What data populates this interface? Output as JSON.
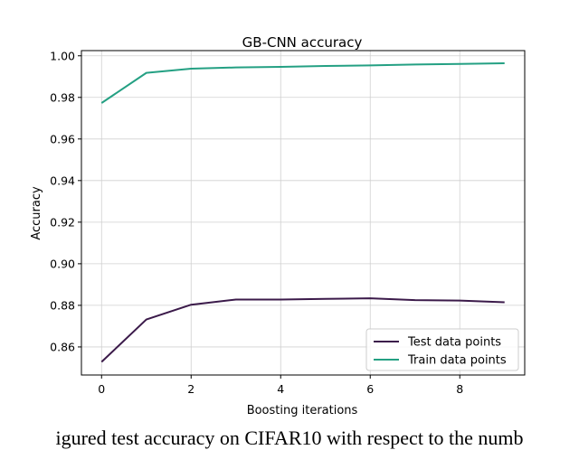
{
  "chart_data": {
    "type": "line",
    "title": "GB-CNN accuracy",
    "xlabel": "Boosting iterations",
    "ylabel": "Accuracy",
    "xlim": [
      -0.45,
      9.45
    ],
    "ylim": [
      0.8465,
      1.0025
    ],
    "xticks": [
      0,
      2,
      4,
      6,
      8
    ],
    "yticks": [
      0.86,
      0.88,
      0.9,
      0.92,
      0.94,
      0.96,
      0.98,
      1.0
    ],
    "ytick_labels": [
      "0.86",
      "0.88",
      "0.90",
      "0.92",
      "0.94",
      "0.96",
      "0.98",
      "1.00"
    ],
    "grid": true,
    "legend_position": "lower-right",
    "x": [
      0,
      1,
      2,
      3,
      4,
      5,
      6,
      7,
      8,
      9
    ],
    "series": [
      {
        "name": "Test data points",
        "color": "#3b1a4a",
        "values": [
          0.8528,
          0.8732,
          0.8803,
          0.8828,
          0.8828,
          0.8831,
          0.8834,
          0.8825,
          0.8823,
          0.8815
        ]
      },
      {
        "name": "Train data points",
        "color": "#24a083",
        "values": [
          0.9773,
          0.9918,
          0.9938,
          0.9944,
          0.9947,
          0.9951,
          0.9954,
          0.9958,
          0.9961,
          0.9964
        ]
      }
    ]
  },
  "caption": "igured test accuracy on CIFAR10 with respect to the numb"
}
